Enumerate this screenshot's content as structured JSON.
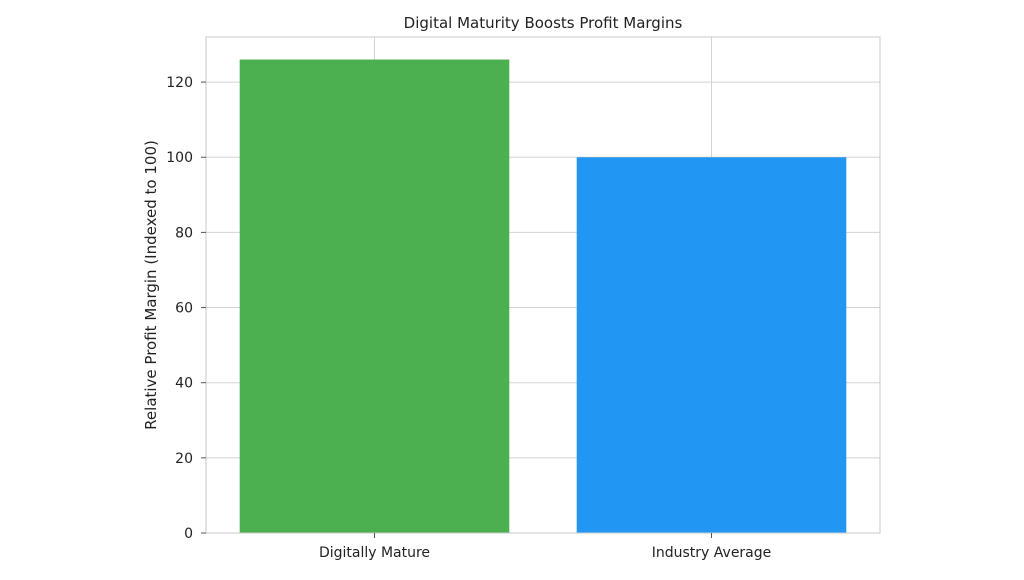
{
  "chart_data": {
    "type": "bar",
    "title": "Digital Maturity Boosts Profit Margins",
    "xlabel": "",
    "ylabel": "Relative Profit Margin (Indexed to 100)",
    "categories": [
      "Digitally Mature",
      "Industry Average"
    ],
    "values": [
      126,
      100
    ],
    "colors": [
      "#4caf50",
      "#2196f3"
    ],
    "ylim": [
      0,
      132
    ],
    "yticks": [
      0,
      20,
      40,
      60,
      80,
      100,
      120
    ],
    "grid": true
  }
}
